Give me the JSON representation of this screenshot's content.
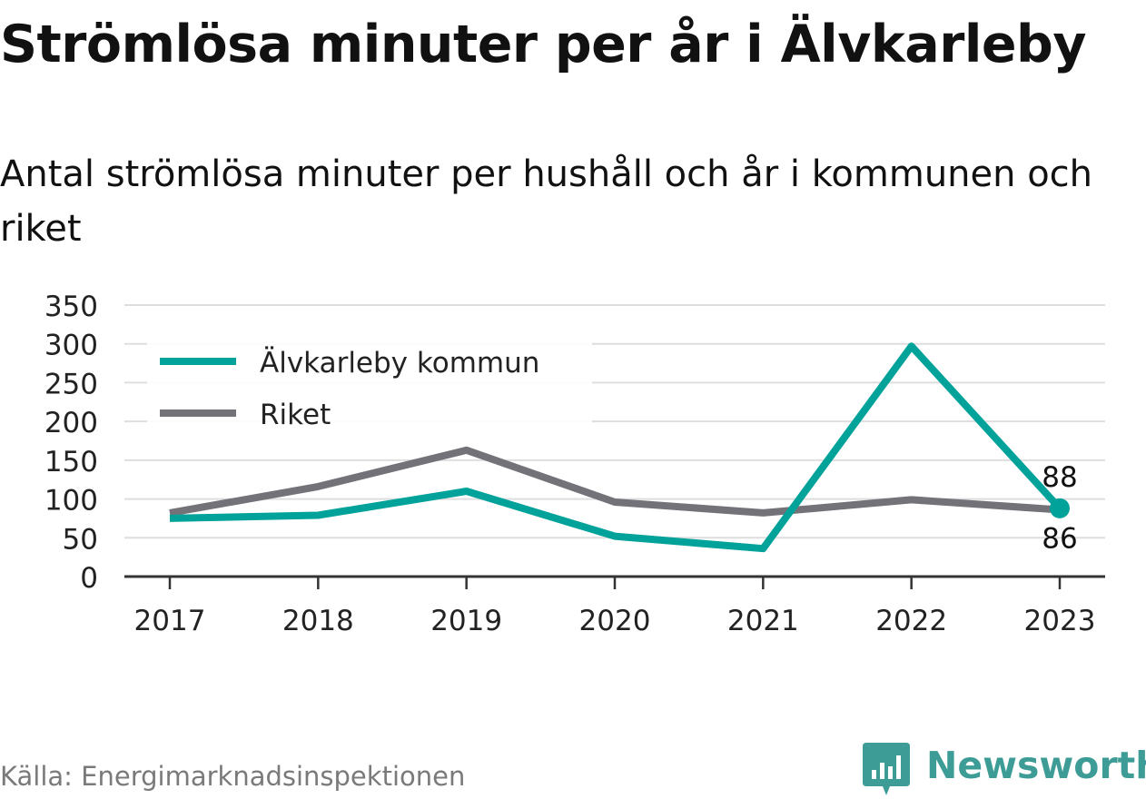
{
  "title": "Strömlösa minuter per år i Älvkarleby",
  "subtitle": "Antal strömlösa minuter per hushåll och år i kommunen och riket",
  "source": "Källa: Energimarknadsinspektionen",
  "brand": {
    "name": "Newsworthy",
    "color": "#3e9c96"
  },
  "chart_data": {
    "type": "line",
    "x": [
      "2017",
      "2018",
      "2019",
      "2020",
      "2021",
      "2022",
      "2023"
    ],
    "series": [
      {
        "name": "Älvkarleby kommun",
        "color": "#00a29a",
        "values": [
          75,
          79,
          110,
          52,
          36,
          297,
          88
        ]
      },
      {
        "name": "Riket",
        "color": "#737278",
        "values": [
          82,
          116,
          163,
          96,
          82,
          99,
          86
        ]
      }
    ],
    "ylim": [
      0,
      350
    ],
    "yticks": [
      "0",
      "50",
      "100",
      "150",
      "200",
      "250",
      "300",
      "350"
    ],
    "grid": true,
    "legend_position": "top-left",
    "end_labels": [
      "88",
      "86"
    ]
  }
}
